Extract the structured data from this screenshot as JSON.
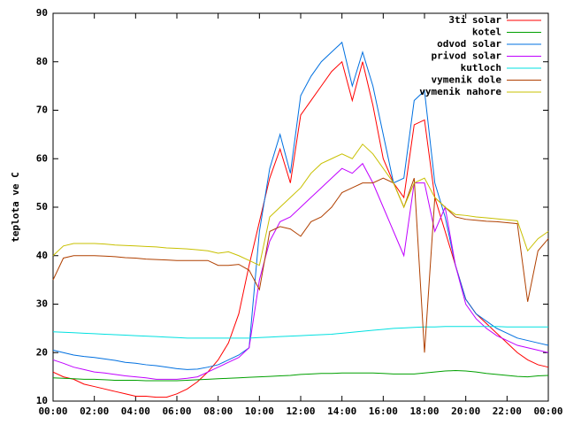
{
  "chart_data": {
    "type": "line",
    "y_label": "teplota ve C",
    "x": [
      0,
      0.5,
      1,
      1.5,
      2,
      2.5,
      3,
      3.5,
      4,
      4.5,
      5,
      5.5,
      6,
      6.5,
      7,
      7.5,
      8,
      8.5,
      9,
      9.5,
      10,
      10.5,
      11,
      11.5,
      12,
      12.5,
      13,
      13.5,
      14,
      14.5,
      15,
      15.5,
      16,
      16.5,
      17,
      17.5,
      18,
      18.5,
      19,
      19.5,
      20,
      20.5,
      21,
      21.5,
      22,
      22.5,
      23,
      23.5,
      24
    ],
    "xlim": [
      0,
      24
    ],
    "xticks": [
      {
        "value": 0,
        "label": "00:00"
      },
      {
        "value": 2,
        "label": "02:00"
      },
      {
        "value": 4,
        "label": "04:00"
      },
      {
        "value": 6,
        "label": "06:00"
      },
      {
        "value": 8,
        "label": "08:00"
      },
      {
        "value": 10,
        "label": "10:00"
      },
      {
        "value": 12,
        "label": "12:00"
      },
      {
        "value": 14,
        "label": "14:00"
      },
      {
        "value": 16,
        "label": "16:00"
      },
      {
        "value": 18,
        "label": "18:00"
      },
      {
        "value": 20,
        "label": "20:00"
      },
      {
        "value": 22,
        "label": "22:00"
      },
      {
        "value": 24,
        "label": "00:00"
      }
    ],
    "ylim": [
      10,
      90
    ],
    "yticks": [
      10,
      20,
      30,
      40,
      50,
      60,
      70,
      80,
      90
    ],
    "legend": "top-right",
    "series": [
      {
        "name": "3ti solar",
        "color": "#ff0000",
        "values": [
          16,
          15,
          14.5,
          13.5,
          13,
          12.5,
          12,
          11.5,
          11,
          11,
          10.8,
          10.8,
          11.5,
          12.5,
          14,
          16,
          18.5,
          22,
          28,
          38,
          47,
          56,
          62,
          55,
          69,
          72,
          75,
          78,
          80,
          72,
          80,
          71,
          60,
          55,
          52,
          67,
          68,
          52,
          45,
          38,
          31,
          28,
          26,
          24,
          22,
          20,
          18.5,
          17.5,
          17
        ]
      },
      {
        "name": "kotel",
        "color": "#00a000",
        "values": [
          14.8,
          14.7,
          14.6,
          14.5,
          14.5,
          14.4,
          14.3,
          14.3,
          14.3,
          14.2,
          14.2,
          14.2,
          14.2,
          14.3,
          14.4,
          14.5,
          14.6,
          14.7,
          14.8,
          14.9,
          15,
          15.1,
          15.2,
          15.3,
          15.5,
          15.6,
          15.7,
          15.7,
          15.8,
          15.8,
          15.8,
          15.8,
          15.7,
          15.6,
          15.6,
          15.6,
          15.8,
          16,
          16.2,
          16.3,
          16.2,
          16,
          15.7,
          15.5,
          15.3,
          15.1,
          15,
          15.2,
          15.3
        ]
      },
      {
        "name": "odvod solar",
        "color": "#0070e0",
        "values": [
          20.5,
          20,
          19.5,
          19.2,
          19,
          18.7,
          18.4,
          18,
          17.8,
          17.5,
          17.3,
          17,
          16.7,
          16.5,
          16.6,
          17,
          17.5,
          18.5,
          19.5,
          21,
          45,
          58,
          65,
          57,
          73,
          77,
          80,
          82,
          84,
          75,
          82,
          75,
          65,
          55,
          56,
          72,
          74,
          55,
          48,
          38,
          31,
          28,
          26.5,
          25,
          24,
          23,
          22.5,
          22,
          21.5
        ]
      },
      {
        "name": "privod solar",
        "color": "#c000ff",
        "values": [
          18.5,
          17.8,
          17,
          16.5,
          16,
          15.8,
          15.5,
          15.2,
          15,
          14.8,
          14.5,
          14.5,
          14.5,
          14.7,
          15,
          16,
          17,
          18,
          19,
          21,
          35,
          43,
          47,
          48,
          50,
          52,
          54,
          56,
          58,
          57,
          59,
          55,
          50,
          45,
          40,
          55,
          55,
          45,
          50,
          38,
          30,
          27,
          25,
          23.5,
          22.5,
          21.5,
          21,
          20.5,
          20
        ]
      },
      {
        "name": "kutloch",
        "color": "#00e0e0",
        "values": [
          24.3,
          24.2,
          24.1,
          24,
          23.9,
          23.8,
          23.7,
          23.6,
          23.5,
          23.4,
          23.3,
          23.2,
          23.1,
          23,
          23,
          23,
          23,
          23,
          23,
          23,
          23.1,
          23.2,
          23.3,
          23.4,
          23.5,
          23.6,
          23.7,
          23.8,
          24,
          24.2,
          24.4,
          24.6,
          24.8,
          25,
          25.1,
          25.2,
          25.3,
          25.3,
          25.4,
          25.4,
          25.4,
          25.4,
          25.4,
          25.4,
          25.3,
          25.3,
          25.3,
          25.3,
          25.3
        ]
      },
      {
        "name": "vymenik dole",
        "color": "#b04000",
        "values": [
          35,
          39.5,
          40,
          40,
          40,
          39.9,
          39.8,
          39.6,
          39.5,
          39.3,
          39.2,
          39.1,
          39,
          39,
          39,
          39,
          38,
          38,
          38.2,
          37,
          33,
          45,
          46,
          45.5,
          44,
          47,
          48,
          50,
          53,
          54,
          55,
          55,
          56,
          55,
          50,
          56,
          20,
          52,
          50,
          48,
          47.5,
          47.3,
          47.1,
          47,
          46.8,
          46.6,
          30.5,
          41,
          43.5
        ]
      },
      {
        "name": "vymenik nahore",
        "color": "#c8c000",
        "values": [
          40,
          42,
          42.5,
          42.5,
          42.5,
          42.4,
          42.2,
          42.1,
          42,
          41.9,
          41.8,
          41.6,
          41.5,
          41.4,
          41.2,
          41,
          40.5,
          40.8,
          40,
          39,
          38,
          48,
          50,
          52,
          54,
          57,
          59,
          60,
          61,
          60,
          63,
          61,
          58,
          55,
          50,
          55,
          56,
          52,
          50,
          48.5,
          48.3,
          48,
          47.8,
          47.6,
          47.4,
          47.2,
          41,
          43.5,
          45
        ]
      }
    ]
  }
}
